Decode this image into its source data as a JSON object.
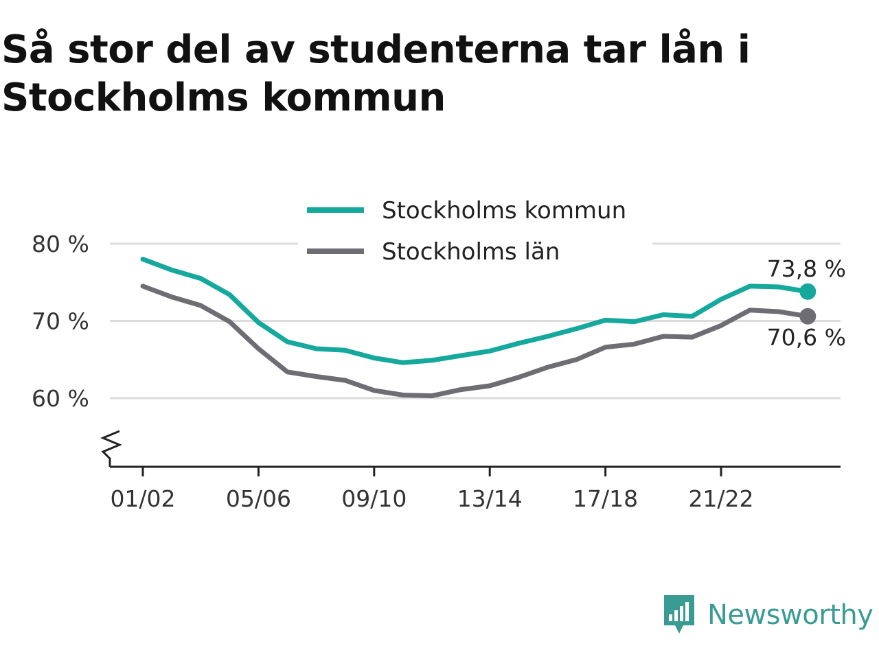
{
  "title": "Så stor del av studenterna tar lån i Stockholms kommun",
  "brand": {
    "name": "Newsworthy",
    "icon": "newsworthy-logo-icon",
    "color": "#3a9b95"
  },
  "chart_data": {
    "type": "line",
    "title": "Så stor del av studenterna tar lån i Stockholms kommun",
    "x": [
      "01/02",
      "02/03",
      "03/04",
      "04/05",
      "05/06",
      "06/07",
      "07/08",
      "08/09",
      "09/10",
      "10/11",
      "11/12",
      "12/13",
      "13/14",
      "14/15",
      "15/16",
      "16/17",
      "17/18",
      "18/19",
      "19/20",
      "20/21",
      "21/22",
      "22/23",
      "23/24",
      "24/25"
    ],
    "x_tick_labels": [
      "01/02",
      "05/06",
      "09/10",
      "13/14",
      "17/18",
      "21/22"
    ],
    "y_ticks": [
      60,
      70,
      80
    ],
    "y_tick_labels": [
      "60 %",
      "70 %",
      "80 %"
    ],
    "ylim": [
      51,
      82
    ],
    "y_axis_break": true,
    "grid": true,
    "legend_position": "top-center",
    "series": [
      {
        "name": "Stockholms kommun",
        "color": "#15a89c",
        "values": [
          78,
          76.6,
          75.5,
          73.4,
          69.8,
          67.3,
          66.4,
          66.2,
          65.2,
          64.6,
          64.9,
          65.5,
          66.1,
          67.1,
          68,
          69,
          70.1,
          69.9,
          70.8,
          70.6,
          72.8,
          74.5,
          74.4,
          73.8
        ],
        "end_label": "73,8 %"
      },
      {
        "name": "Stockholms län",
        "color": "#6e6d73",
        "values": [
          74.5,
          73.1,
          72,
          69.9,
          66.4,
          63.4,
          62.8,
          62.3,
          61,
          60.4,
          60.3,
          61.1,
          61.6,
          62.7,
          64,
          65,
          66.6,
          67,
          68,
          67.9,
          69.4,
          71.4,
          71.2,
          70.6
        ],
        "end_label": "70,6 %"
      }
    ]
  }
}
